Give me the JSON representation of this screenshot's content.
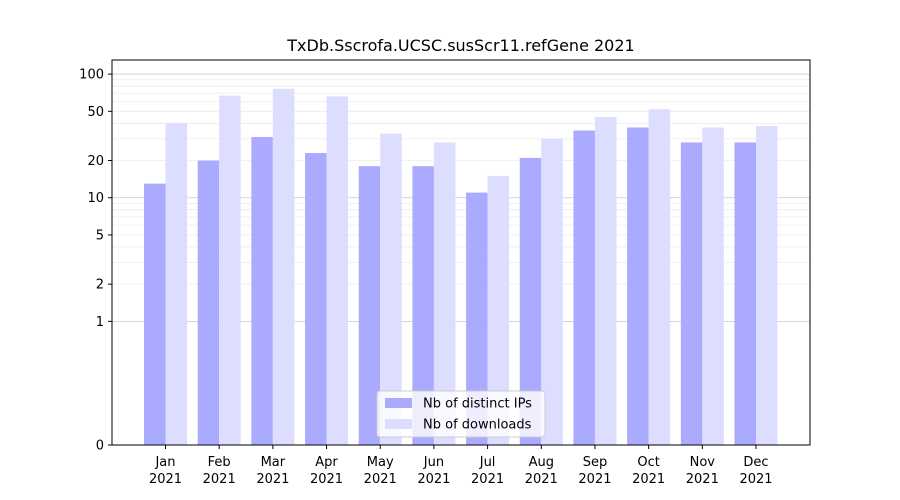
{
  "chart_data": {
    "type": "bar",
    "title": "TxDb.Sscrofa.UCSC.susScr11.refGene 2021",
    "xlabel": "",
    "ylabel": "",
    "yscale": "symlog",
    "ylim": [
      0,
      130
    ],
    "yticks": [
      0,
      1,
      2,
      5,
      10,
      20,
      50,
      100
    ],
    "yticks_labels": [
      "0",
      "1",
      "2",
      "5",
      "10",
      "20",
      "50",
      "100"
    ],
    "grid": true,
    "legend_position": "bottom-center",
    "categories": [
      [
        "Jan",
        "2021"
      ],
      [
        "Feb",
        "2021"
      ],
      [
        "Mar",
        "2021"
      ],
      [
        "Apr",
        "2021"
      ],
      [
        "May",
        "2021"
      ],
      [
        "Jun",
        "2021"
      ],
      [
        "Jul",
        "2021"
      ],
      [
        "Aug",
        "2021"
      ],
      [
        "Sep",
        "2021"
      ],
      [
        "Oct",
        "2021"
      ],
      [
        "Nov",
        "2021"
      ],
      [
        "Dec",
        "2021"
      ]
    ],
    "series": [
      {
        "name": "Nb of distinct IPs",
        "color": "#aaaaff",
        "values": [
          13,
          20,
          31,
          23,
          18,
          18,
          11,
          21,
          35,
          37,
          28,
          28
        ]
      },
      {
        "name": "Nb of downloads",
        "color": "#ddddff",
        "values": [
          40,
          67,
          76,
          66,
          33,
          28,
          15,
          30,
          45,
          52,
          37,
          38
        ]
      }
    ]
  }
}
